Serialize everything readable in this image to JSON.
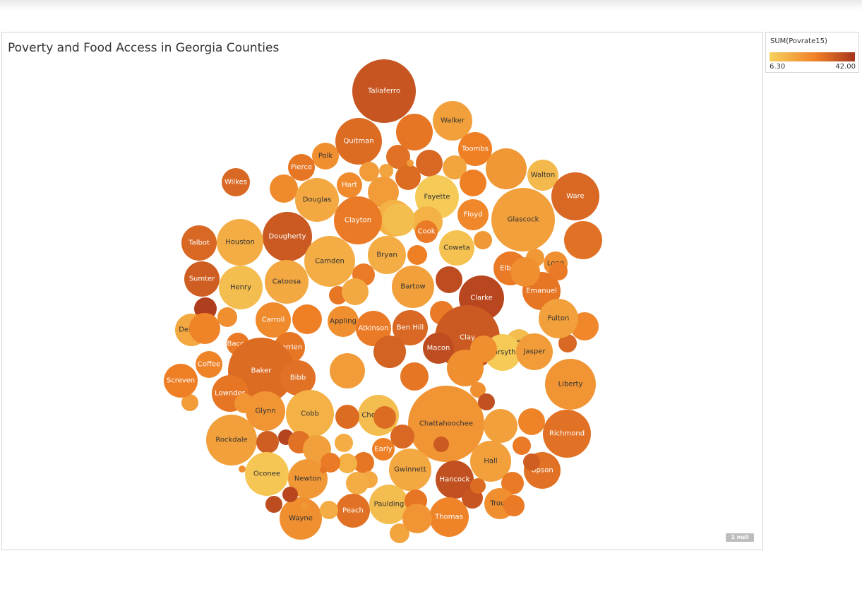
{
  "title": "Poverty and Food Access in Georgia Counties",
  "null_badge": "1 null",
  "legend": {
    "title": "SUM(Povrate15)",
    "min_label": "6.30",
    "max_label": "42.00",
    "min_value": 6.3,
    "max_value": 42.0,
    "color_low": "#f6d15c",
    "color_mid": "#ef7f25",
    "color_high": "#a6351e"
  },
  "chart_data": {
    "type": "bubble",
    "color_field": "SUM(Povrate15)",
    "bubbles": [
      {
        "label": "Taliaferro",
        "size": 45,
        "value": 35
      },
      {
        "label": "Walker",
        "size": 28,
        "value": 18
      },
      {
        "label": "Quitman",
        "size": 33,
        "value": 30
      },
      {
        "label": "",
        "size": 26,
        "value": 28
      },
      {
        "label": "Toombs",
        "size": 24,
        "value": 26
      },
      {
        "label": "Polk",
        "size": 19,
        "value": 22
      },
      {
        "label": "Pierce",
        "size": 19,
        "value": 28
      },
      {
        "label": "",
        "size": 17,
        "value": 29
      },
      {
        "label": "",
        "size": 19,
        "value": 31
      },
      {
        "label": "",
        "size": 17,
        "value": 17
      },
      {
        "label": "Walton",
        "size": 22,
        "value": 12
      },
      {
        "label": "",
        "size": 29,
        "value": 20
      },
      {
        "label": "Wilkes",
        "size": 20,
        "value": 31
      },
      {
        "label": "Hart",
        "size": 18,
        "value": 23
      },
      {
        "label": "",
        "size": 18,
        "value": 30
      },
      {
        "label": "",
        "size": 14,
        "value": 19
      },
      {
        "label": "",
        "size": 10,
        "value": 17
      },
      {
        "label": "",
        "size": 5,
        "value": 19
      },
      {
        "label": "",
        "size": 20,
        "value": 23
      },
      {
        "label": "Douglas",
        "size": 31,
        "value": 16
      },
      {
        "label": "",
        "size": 22,
        "value": 19
      },
      {
        "label": "Fayette",
        "size": 31,
        "value": 8
      },
      {
        "label": "",
        "size": 19,
        "value": 26
      },
      {
        "label": "Ware",
        "size": 34,
        "value": 31
      },
      {
        "label": "",
        "size": 26,
        "value": 14
      },
      {
        "label": "",
        "size": 22,
        "value": 14
      },
      {
        "label": "Clayton",
        "size": 34,
        "value": 27
      },
      {
        "label": "Dougherty",
        "size": 35,
        "value": 34
      },
      {
        "label": "",
        "size": 23,
        "value": 11
      },
      {
        "label": "Floyd",
        "size": 22,
        "value": 24
      },
      {
        "label": "Glascock",
        "size": 45,
        "value": 18
      },
      {
        "label": "",
        "size": 27,
        "value": 29
      },
      {
        "label": "Cook",
        "size": 16,
        "value": 27
      },
      {
        "label": "Talbot",
        "size": 25,
        "value": 31
      },
      {
        "label": "Houston",
        "size": 33,
        "value": 15
      },
      {
        "label": "Coweta",
        "size": 25,
        "value": 10
      },
      {
        "label": "",
        "size": 13,
        "value": 20
      },
      {
        "label": "Camden",
        "size": 36,
        "value": 15
      },
      {
        "label": "Bryan",
        "size": 27,
        "value": 15
      },
      {
        "label": "",
        "size": 14,
        "value": 26
      },
      {
        "label": "Long",
        "size": 17,
        "value": 22
      },
      {
        "label": "Elbert",
        "size": 24,
        "value": 27
      },
      {
        "label": "",
        "size": 13,
        "value": 20
      },
      {
        "label": "Sumter",
        "size": 25,
        "value": 33
      },
      {
        "label": "Henry",
        "size": 31,
        "value": 11
      },
      {
        "label": "Catoosa",
        "size": 31,
        "value": 16
      },
      {
        "label": "",
        "size": 16,
        "value": 27
      },
      {
        "label": "Bartow",
        "size": 30,
        "value": 18
      },
      {
        "label": "",
        "size": 19,
        "value": 37
      },
      {
        "label": "Clarke",
        "size": 32,
        "value": 38
      },
      {
        "label": "Emanuel",
        "size": 27,
        "value": 28
      },
      {
        "label": "",
        "size": 13,
        "value": 27
      },
      {
        "label": "",
        "size": 21,
        "value": 22
      },
      {
        "label": "",
        "size": 16,
        "value": 40
      },
      {
        "label": "",
        "size": 14,
        "value": 22
      },
      {
        "label": "",
        "size": 13,
        "value": 28
      },
      {
        "label": "",
        "size": 19,
        "value": 16
      },
      {
        "label": "DeKalb",
        "size": 23,
        "value": 16
      },
      {
        "label": "Carroll",
        "size": 25,
        "value": 23
      },
      {
        "label": "",
        "size": 21,
        "value": 26
      },
      {
        "label": "Appling",
        "size": 22,
        "value": 22
      },
      {
        "label": "Atkinson",
        "size": 25,
        "value": 27
      },
      {
        "label": "Ben Hill",
        "size": 25,
        "value": 31
      },
      {
        "label": "",
        "size": 17,
        "value": 27
      },
      {
        "label": "Clay",
        "size": 46,
        "value": 34
      },
      {
        "label": "Lee",
        "size": 18,
        "value": 11
      },
      {
        "label": "",
        "size": 13,
        "value": 31
      },
      {
        "label": "",
        "size": 20,
        "value": 24
      },
      {
        "label": "Fulton",
        "size": 28,
        "value": 18
      },
      {
        "label": "",
        "size": 22,
        "value": 25
      },
      {
        "label": "Bacon",
        "size": 16,
        "value": 27
      },
      {
        "label": "Berrien",
        "size": 22,
        "value": 28
      },
      {
        "label": "",
        "size": 23,
        "value": 32
      },
      {
        "label": "Macon",
        "size": 22,
        "value": 37
      },
      {
        "label": "Forsyth",
        "size": 26,
        "value": 8
      },
      {
        "label": "Coffee",
        "size": 19,
        "value": 25
      },
      {
        "label": "Baker",
        "size": 47,
        "value": 30
      },
      {
        "label": "Bibb",
        "size": 25,
        "value": 29
      },
      {
        "label": "",
        "size": 25,
        "value": 19
      },
      {
        "label": "",
        "size": 20,
        "value": 28
      },
      {
        "label": "",
        "size": 26,
        "value": 22
      },
      {
        "label": "Jasper",
        "size": 26,
        "value": 19
      },
      {
        "label": "Liberty",
        "size": 36,
        "value": 21
      },
      {
        "label": "Lowndes",
        "size": 26,
        "value": 28
      },
      {
        "label": "",
        "size": 14,
        "value": 21
      },
      {
        "label": "",
        "size": 12,
        "value": 19
      },
      {
        "label": "Screven",
        "size": 24,
        "value": 26
      },
      {
        "label": "Glynn",
        "size": 28,
        "value": 21
      },
      {
        "label": "Cobb",
        "size": 34,
        "value": 14
      },
      {
        "label": "Cherokee",
        "size": 29,
        "value": 11
      },
      {
        "label": "",
        "size": 17,
        "value": 30
      },
      {
        "label": "Chattahoochee",
        "size": 54,
        "value": 21
      },
      {
        "label": "",
        "size": 24,
        "value": 18
      },
      {
        "label": "",
        "size": 19,
        "value": 25
      },
      {
        "label": "Richmond",
        "size": 34,
        "value": 29
      },
      {
        "label": "Rockdale",
        "size": 36,
        "value": 18
      },
      {
        "label": "",
        "size": 16,
        "value": 33
      },
      {
        "label": "",
        "size": 11,
        "value": 39
      },
      {
        "label": "",
        "size": 16,
        "value": 29
      },
      {
        "label": "",
        "size": 20,
        "value": 18
      },
      {
        "label": "",
        "size": 16,
        "value": 30
      },
      {
        "label": "Early",
        "size": 16,
        "value": 26
      },
      {
        "label": "",
        "size": 13,
        "value": 15
      },
      {
        "label": "",
        "size": 17,
        "value": 31
      },
      {
        "label": "Hall",
        "size": 29,
        "value": 18
      },
      {
        "label": "Upson",
        "size": 26,
        "value": 29
      },
      {
        "label": "Oconee",
        "size": 31,
        "value": 9
      },
      {
        "label": "Newton",
        "size": 28,
        "value": 20
      },
      {
        "label": "Gwinnett",
        "size": 30,
        "value": 16
      },
      {
        "label": "Hancock",
        "size": 27,
        "value": 36
      },
      {
        "label": "",
        "size": 13,
        "value": 27
      },
      {
        "label": "",
        "size": 12,
        "value": 33
      },
      {
        "label": "",
        "size": 11,
        "value": 22
      },
      {
        "label": "",
        "size": 12,
        "value": 36
      },
      {
        "label": "",
        "size": 11,
        "value": 34
      },
      {
        "label": "",
        "size": 16,
        "value": 27
      },
      {
        "label": "",
        "size": 15,
        "value": 28
      },
      {
        "label": "",
        "size": 14,
        "value": 14
      },
      {
        "label": "",
        "size": 12,
        "value": 16
      },
      {
        "label": "",
        "size": 14,
        "value": 27
      },
      {
        "label": "",
        "size": 16,
        "value": 15
      },
      {
        "label": "Wayne",
        "size": 30,
        "value": 22
      },
      {
        "label": "Peach",
        "size": 24,
        "value": 29
      },
      {
        "label": "Paulding",
        "size": 28,
        "value": 11
      },
      {
        "label": "Thomas",
        "size": 28,
        "value": 25
      },
      {
        "label": "Troup",
        "size": 22,
        "value": 22
      },
      {
        "label": "",
        "size": 15,
        "value": 35
      },
      {
        "label": "",
        "size": 11,
        "value": 30
      },
      {
        "label": "",
        "size": 15,
        "value": 27
      },
      {
        "label": "",
        "size": 13,
        "value": 15
      },
      {
        "label": "",
        "size": 16,
        "value": 28
      },
      {
        "label": "",
        "size": 12,
        "value": 37
      },
      {
        "label": "",
        "size": 11,
        "value": 38
      },
      {
        "label": "",
        "size": 14,
        "value": 17
      },
      {
        "label": "",
        "size": 5,
        "value": 28
      },
      {
        "label": "",
        "size": 5,
        "value": 20
      },
      {
        "label": "",
        "size": 5,
        "value": 22
      },
      {
        "label": "",
        "size": 19,
        "value": 22
      },
      {
        "label": "",
        "size": 21,
        "value": 21
      }
    ]
  }
}
